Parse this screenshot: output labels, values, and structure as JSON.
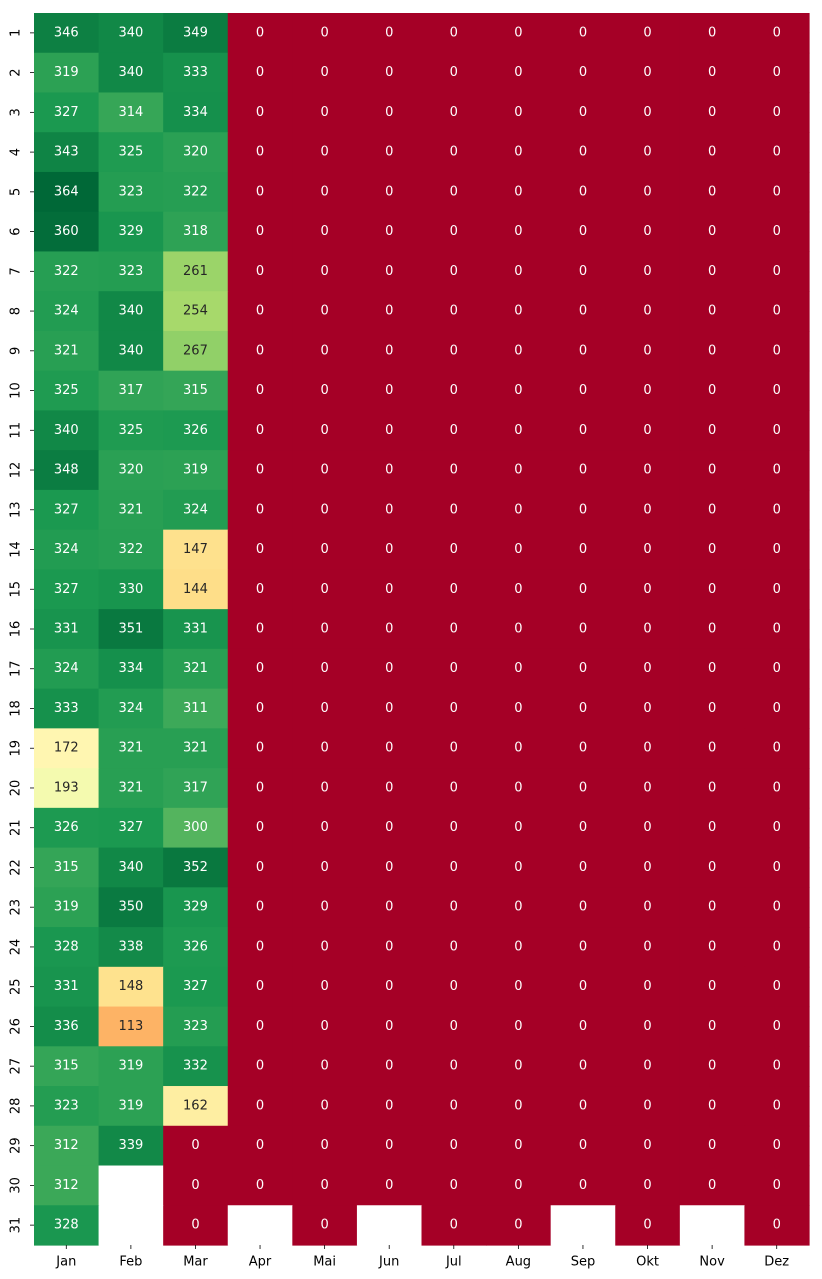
{
  "chart_data": {
    "type": "heatmap",
    "title": "",
    "xlabel": "",
    "ylabel": "",
    "x_categories": [
      "Jan",
      "Feb",
      "Mar",
      "Apr",
      "Mai",
      "Jun",
      "Jul",
      "Aug",
      "Sep",
      "Okt",
      "Nov",
      "Dez"
    ],
    "y_categories": [
      "1",
      "2",
      "3",
      "4",
      "5",
      "6",
      "7",
      "8",
      "9",
      "10",
      "11",
      "12",
      "13",
      "14",
      "15",
      "16",
      "17",
      "18",
      "19",
      "20",
      "21",
      "22",
      "23",
      "24",
      "25",
      "26",
      "27",
      "28",
      "29",
      "30",
      "31"
    ],
    "values": [
      [
        346,
        340,
        349,
        0,
        0,
        0,
        0,
        0,
        0,
        0,
        0,
        0
      ],
      [
        319,
        340,
        333,
        0,
        0,
        0,
        0,
        0,
        0,
        0,
        0,
        0
      ],
      [
        327,
        314,
        334,
        0,
        0,
        0,
        0,
        0,
        0,
        0,
        0,
        0
      ],
      [
        343,
        325,
        320,
        0,
        0,
        0,
        0,
        0,
        0,
        0,
        0,
        0
      ],
      [
        364,
        323,
        322,
        0,
        0,
        0,
        0,
        0,
        0,
        0,
        0,
        0
      ],
      [
        360,
        329,
        318,
        0,
        0,
        0,
        0,
        0,
        0,
        0,
        0,
        0
      ],
      [
        322,
        323,
        261,
        0,
        0,
        0,
        0,
        0,
        0,
        0,
        0,
        0
      ],
      [
        324,
        340,
        254,
        0,
        0,
        0,
        0,
        0,
        0,
        0,
        0,
        0
      ],
      [
        321,
        340,
        267,
        0,
        0,
        0,
        0,
        0,
        0,
        0,
        0,
        0
      ],
      [
        325,
        317,
        315,
        0,
        0,
        0,
        0,
        0,
        0,
        0,
        0,
        0
      ],
      [
        340,
        325,
        326,
        0,
        0,
        0,
        0,
        0,
        0,
        0,
        0,
        0
      ],
      [
        348,
        320,
        319,
        0,
        0,
        0,
        0,
        0,
        0,
        0,
        0,
        0
      ],
      [
        327,
        321,
        324,
        0,
        0,
        0,
        0,
        0,
        0,
        0,
        0,
        0
      ],
      [
        324,
        322,
        147,
        0,
        0,
        0,
        0,
        0,
        0,
        0,
        0,
        0
      ],
      [
        327,
        330,
        144,
        0,
        0,
        0,
        0,
        0,
        0,
        0,
        0,
        0
      ],
      [
        331,
        351,
        331,
        0,
        0,
        0,
        0,
        0,
        0,
        0,
        0,
        0
      ],
      [
        324,
        334,
        321,
        0,
        0,
        0,
        0,
        0,
        0,
        0,
        0,
        0
      ],
      [
        333,
        324,
        311,
        0,
        0,
        0,
        0,
        0,
        0,
        0,
        0,
        0
      ],
      [
        172,
        321,
        321,
        0,
        0,
        0,
        0,
        0,
        0,
        0,
        0,
        0
      ],
      [
        193,
        321,
        317,
        0,
        0,
        0,
        0,
        0,
        0,
        0,
        0,
        0
      ],
      [
        326,
        327,
        300,
        0,
        0,
        0,
        0,
        0,
        0,
        0,
        0,
        0
      ],
      [
        315,
        340,
        352,
        0,
        0,
        0,
        0,
        0,
        0,
        0,
        0,
        0
      ],
      [
        319,
        350,
        329,
        0,
        0,
        0,
        0,
        0,
        0,
        0,
        0,
        0
      ],
      [
        328,
        338,
        326,
        0,
        0,
        0,
        0,
        0,
        0,
        0,
        0,
        0
      ],
      [
        331,
        148,
        327,
        0,
        0,
        0,
        0,
        0,
        0,
        0,
        0,
        0
      ],
      [
        336,
        113,
        323,
        0,
        0,
        0,
        0,
        0,
        0,
        0,
        0,
        0
      ],
      [
        315,
        319,
        332,
        0,
        0,
        0,
        0,
        0,
        0,
        0,
        0,
        0
      ],
      [
        323,
        319,
        162,
        0,
        0,
        0,
        0,
        0,
        0,
        0,
        0,
        0
      ],
      [
        312,
        339,
        0,
        0,
        0,
        0,
        0,
        0,
        0,
        0,
        0,
        0
      ],
      [
        312,
        null,
        0,
        0,
        0,
        0,
        0,
        0,
        0,
        0,
        0,
        0
      ],
      [
        328,
        null,
        0,
        null,
        0,
        null,
        0,
        0,
        null,
        0,
        null,
        0
      ]
    ],
    "colormap": "RdYlGn",
    "value_range": [
      0,
      364
    ],
    "annotations_shown": true,
    "colorbar": false,
    "grid": false,
    "missing_color": "#ffffff",
    "light_text_color": "#ffffff",
    "dark_text_color": "#262626"
  }
}
